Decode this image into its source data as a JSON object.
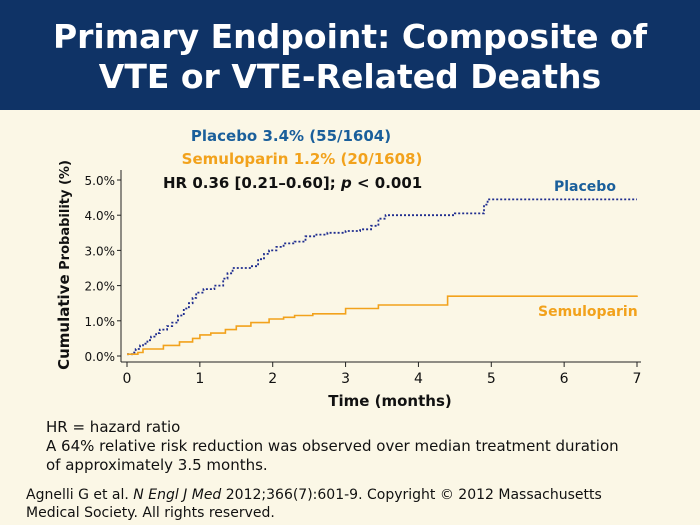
{
  "slide": {
    "title_line1": "Primary Endpoint: Composite of",
    "title_line2": "VTE or VTE-Related Deaths"
  },
  "annotations": {
    "placebo_stat": "Placebo 3.4% (55/1604)",
    "semuloparin_stat": "Semuloparin 1.2% (20/1608)",
    "hr_prefix": "HR 0.36 [0.21–0.60]; ",
    "hr_p": "p",
    "hr_suffix": " < 0.001"
  },
  "colors": {
    "placebo": "#1a5f9b",
    "placebo_line": "#1f2d8f",
    "semuloparin": "#f2a21c",
    "header_bg": "#0f3366"
  },
  "chart_data": {
    "type": "line",
    "title": "",
    "xlabel": "Time (months)",
    "ylabel_part1": "Cumulative",
    "ylabel_part2": " Probability (%)",
    "xlim": [
      0,
      7
    ],
    "ylim": [
      0,
      5
    ],
    "x_ticks": [
      "0",
      "1",
      "2",
      "3",
      "4",
      "5",
      "6",
      "7"
    ],
    "y_ticks": [
      "0.0%",
      "1.0%",
      "2.0%",
      "3.0%",
      "4.0%",
      "5.0%"
    ],
    "grid": false,
    "series": [
      {
        "name": "Placebo",
        "style": "dotted-step",
        "points": [
          [
            0,
            0.05
          ],
          [
            0.07,
            0.1
          ],
          [
            0.12,
            0.2
          ],
          [
            0.18,
            0.3
          ],
          [
            0.22,
            0.35
          ],
          [
            0.28,
            0.45
          ],
          [
            0.33,
            0.55
          ],
          [
            0.4,
            0.65
          ],
          [
            0.45,
            0.75
          ],
          [
            0.55,
            0.85
          ],
          [
            0.62,
            0.95
          ],
          [
            0.7,
            1.15
          ],
          [
            0.78,
            1.35
          ],
          [
            0.85,
            1.5
          ],
          [
            0.9,
            1.65
          ],
          [
            0.95,
            1.8
          ],
          [
            1.05,
            1.9
          ],
          [
            1.2,
            2.0
          ],
          [
            1.32,
            2.2
          ],
          [
            1.38,
            2.35
          ],
          [
            1.45,
            2.5
          ],
          [
            1.7,
            2.55
          ],
          [
            1.8,
            2.75
          ],
          [
            1.88,
            2.9
          ],
          [
            1.95,
            3.0
          ],
          [
            2.05,
            3.1
          ],
          [
            2.15,
            3.2
          ],
          [
            2.3,
            3.25
          ],
          [
            2.45,
            3.4
          ],
          [
            2.6,
            3.45
          ],
          [
            2.75,
            3.5
          ],
          [
            3.0,
            3.55
          ],
          [
            3.2,
            3.6
          ],
          [
            3.35,
            3.7
          ],
          [
            3.45,
            3.9
          ],
          [
            3.55,
            4.0
          ],
          [
            4.5,
            4.05
          ],
          [
            4.9,
            4.3
          ],
          [
            4.95,
            4.45
          ],
          [
            7.0,
            4.45
          ]
        ]
      },
      {
        "name": "Semuloparin",
        "style": "solid-step",
        "points": [
          [
            0,
            0.05
          ],
          [
            0.15,
            0.1
          ],
          [
            0.22,
            0.2
          ],
          [
            0.5,
            0.3
          ],
          [
            0.72,
            0.4
          ],
          [
            0.9,
            0.5
          ],
          [
            1.0,
            0.6
          ],
          [
            1.15,
            0.65
          ],
          [
            1.35,
            0.75
          ],
          [
            1.5,
            0.85
          ],
          [
            1.7,
            0.95
          ],
          [
            1.95,
            1.05
          ],
          [
            2.15,
            1.1
          ],
          [
            2.3,
            1.15
          ],
          [
            2.55,
            1.2
          ],
          [
            3.0,
            1.35
          ],
          [
            3.45,
            1.45
          ],
          [
            4.4,
            1.7
          ],
          [
            7.0,
            1.72
          ]
        ]
      }
    ],
    "series_labels": [
      "Placebo",
      "Semuloparin"
    ]
  },
  "footer": {
    "line1": "HR = hazard ratio",
    "line2": "A 64% relative risk reduction was observed over median treatment duration",
    "line3": "of approximately 3.5 months.",
    "cite_prefix": "Agnelli G et al. ",
    "cite_journal": "N Engl J Med",
    "cite_rest": " 2012;366(7):601-9. Copyright © 2012 Massachusetts",
    "cite_line2": "Medical Society. All rights reserved."
  }
}
